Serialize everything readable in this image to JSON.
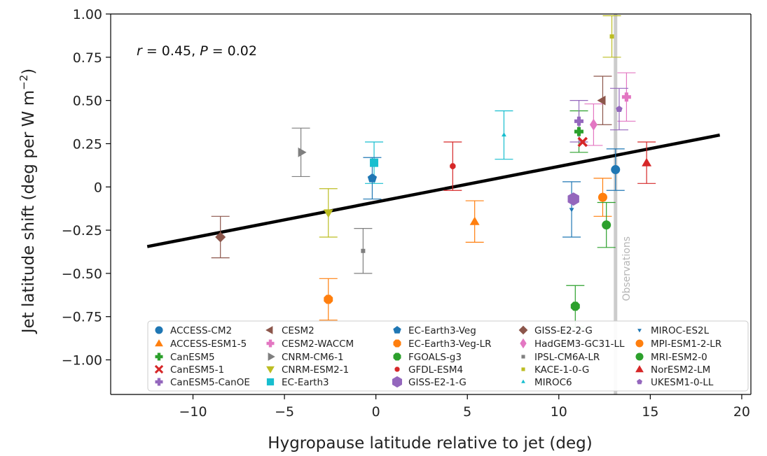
{
  "chart_data": {
    "type": "scatter",
    "xlabel": "Hygropause latitude relative to jet (deg)",
    "ylabel": "Jet latitude shift (deg per W m",
    "ylabel_sup": "−2",
    "ylabel_close": ")",
    "xlim": [
      -14.5,
      20.5
    ],
    "ylim": [
      -1.2,
      1.0
    ],
    "xticks": [
      -10,
      -5,
      0,
      5,
      10,
      15,
      20
    ],
    "xtick_labels": [
      "−10",
      "−5",
      "0",
      "5",
      "10",
      "15",
      "20"
    ],
    "yticks": [
      1.0,
      0.75,
      0.5,
      0.25,
      0,
      -0.25,
      -0.5,
      -0.75,
      -1.0
    ],
    "ytick_labels": [
      "1.00",
      "0.75",
      "0.50",
      "0.25",
      "0",
      "−0.25",
      "−0.50",
      "−0.75",
      "−1.00"
    ],
    "stat": {
      "r_label": "r",
      "r_rest": " = 0.45, ",
      "p_label": "P",
      "p_rest": " = 0.02"
    },
    "observations": {
      "x": 13.1,
      "label": "Observations",
      "color": "#cccccc"
    },
    "regression": {
      "x": [
        -12.5,
        18.8
      ],
      "y": [
        -0.345,
        0.3
      ],
      "color": "#000000"
    },
    "points": [
      {
        "name": "ACCESS-CM2",
        "x": 13.1,
        "y": 0.1,
        "err": 0.12,
        "color": "#1f77b4",
        "marker": "circle"
      },
      {
        "name": "ACCESS-ESM1-5",
        "x": 5.4,
        "y": -0.2,
        "err": 0.12,
        "color": "#ff7f0e",
        "marker": "triangle-up"
      },
      {
        "name": "CanESM5",
        "x": 11.1,
        "y": 0.32,
        "err": 0.12,
        "color": "#2ca02c",
        "marker": "plus"
      },
      {
        "name": "CanESM5-1",
        "x": 11.3,
        "y": 0.26,
        "err": 0.0,
        "color": "#d62728",
        "marker": "x"
      },
      {
        "name": "CanESM5-CanOE",
        "x": 11.1,
        "y": 0.38,
        "err": 0.12,
        "color": "#9467bd",
        "marker": "plus"
      },
      {
        "name": "CESM2",
        "x": 12.4,
        "y": 0.5,
        "err": 0.14,
        "color": "#8c564b",
        "marker": "triangle-left"
      },
      {
        "name": "CESM2-WACCM",
        "x": 13.7,
        "y": 0.52,
        "err": 0.14,
        "color": "#e377c2",
        "marker": "plus"
      },
      {
        "name": "CNRM-CM6-1",
        "x": -4.1,
        "y": 0.2,
        "err": 0.14,
        "color": "#7f7f7f",
        "marker": "triangle-right"
      },
      {
        "name": "CNRM-ESM2-1",
        "x": -2.6,
        "y": -0.15,
        "err": 0.14,
        "color": "#bcbd22",
        "marker": "triangle-down"
      },
      {
        "name": "EC-Earth3",
        "x": -0.1,
        "y": 0.14,
        "err": 0.12,
        "color": "#17becf",
        "marker": "square"
      },
      {
        "name": "EC-Earth3-Veg",
        "x": -0.2,
        "y": 0.05,
        "err": 0.12,
        "color": "#1f77b4",
        "marker": "pentagon"
      },
      {
        "name": "EC-Earth3-Veg-LR",
        "x": -2.6,
        "y": -0.65,
        "err": 0.12,
        "color": "#ff7f0e",
        "marker": "octagon"
      },
      {
        "name": "FGOALS-g3",
        "x": 10.9,
        "y": -0.69,
        "err": 0.12,
        "color": "#2ca02c",
        "marker": "octagon"
      },
      {
        "name": "GFDL-ESM4",
        "x": 4.2,
        "y": 0.12,
        "err": 0.14,
        "color": "#d62728",
        "marker": "octagon-small"
      },
      {
        "name": "GISS-E2-1-G",
        "x": 10.8,
        "y": -0.07,
        "err": 0.0,
        "color": "#9467bd",
        "marker": "hexagon"
      },
      {
        "name": "GISS-E2-2-G",
        "x": -8.5,
        "y": -0.29,
        "err": 0.12,
        "color": "#8c564b",
        "marker": "diamond"
      },
      {
        "name": "HadGEM3-GC31-LL",
        "x": 11.9,
        "y": 0.36,
        "err": 0.12,
        "color": "#e377c2",
        "marker": "thin-diamond"
      },
      {
        "name": "IPSL-CM6A-LR",
        "x": -0.7,
        "y": -0.37,
        "err": 0.13,
        "color": "#7f7f7f",
        "marker": "small-square"
      },
      {
        "name": "KACE-1-0-G",
        "x": 12.9,
        "y": 0.87,
        "err": 0.12,
        "color": "#bcbd22",
        "marker": "small-square"
      },
      {
        "name": "MIROC6",
        "x": 7.0,
        "y": 0.3,
        "err": 0.14,
        "color": "#17becf",
        "marker": "small-triangle"
      },
      {
        "name": "MIROC-ES2L",
        "x": 10.7,
        "y": -0.13,
        "err": 0.16,
        "color": "#1f77b4",
        "marker": "small-triangle-down"
      },
      {
        "name": "MPI-ESM1-2-LR",
        "x": 12.4,
        "y": -0.06,
        "err": 0.11,
        "color": "#ff7f0e",
        "marker": "circle"
      },
      {
        "name": "MRI-ESM2-0",
        "x": 12.6,
        "y": -0.22,
        "err": 0.13,
        "color": "#2ca02c",
        "marker": "circle"
      },
      {
        "name": "NorESM2-LM",
        "x": 14.8,
        "y": 0.14,
        "err": 0.12,
        "color": "#d62728",
        "marker": "triangle-up"
      },
      {
        "name": "UKESM1-0-LL",
        "x": 13.3,
        "y": 0.45,
        "err": 0.12,
        "color": "#9467bd",
        "marker": "pentagon-small"
      }
    ]
  }
}
